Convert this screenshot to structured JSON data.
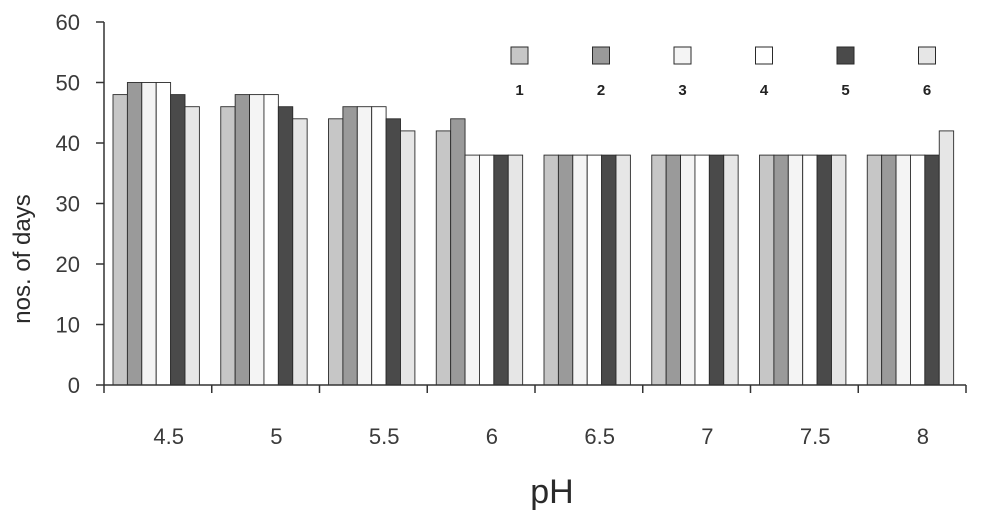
{
  "chart_data": {
    "type": "bar",
    "title": "",
    "xlabel": "pH",
    "ylabel": "nos. of days",
    "ylim": [
      0,
      60
    ],
    "yticks": [
      0,
      10,
      20,
      30,
      40,
      50,
      60
    ],
    "grid": false,
    "legend_position": "top-right",
    "categories": [
      "4.5",
      "5",
      "5.5",
      "6",
      "6.5",
      "7",
      "7.5",
      "8"
    ],
    "series": [
      {
        "name": "1",
        "values": [
          48,
          46,
          44,
          42,
          38,
          38,
          38,
          38
        ],
        "color": "#c6c6c6"
      },
      {
        "name": "2",
        "values": [
          50,
          48,
          46,
          44,
          38,
          38,
          38,
          38
        ],
        "color": "#9a9a9a"
      },
      {
        "name": "3",
        "values": [
          50,
          48,
          46,
          38,
          38,
          38,
          38,
          38
        ],
        "color": "#f4f4f4"
      },
      {
        "name": "4",
        "values": [
          50,
          48,
          46,
          38,
          38,
          38,
          38,
          38
        ],
        "color": "#ffffff"
      },
      {
        "name": "5",
        "values": [
          48,
          46,
          44,
          38,
          38,
          38,
          38,
          38
        ],
        "color": "#4a4a4a"
      },
      {
        "name": "6",
        "values": [
          46,
          44,
          42,
          38,
          38,
          38,
          38,
          42
        ],
        "color": "#e6e6e6"
      }
    ]
  }
}
